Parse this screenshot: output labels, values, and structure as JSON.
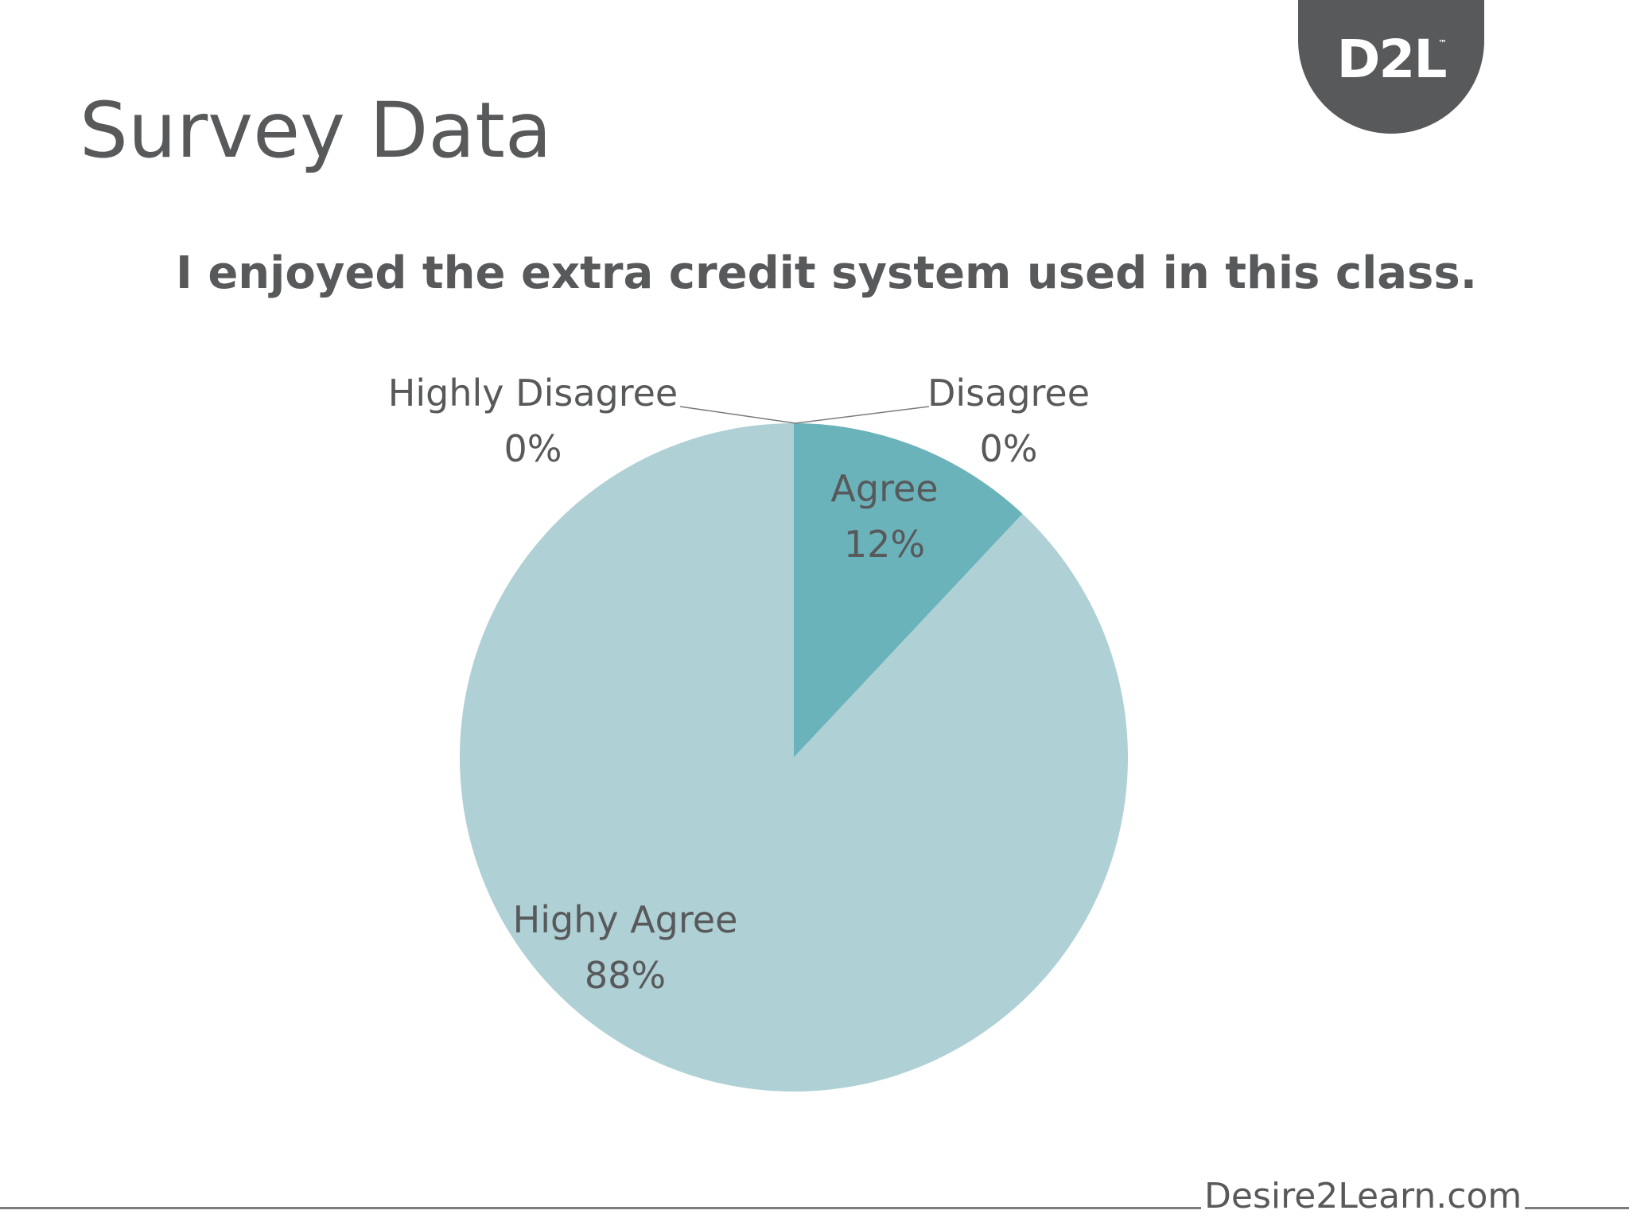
{
  "slide": {
    "title": "Survey Data",
    "logo_text": "D2L",
    "logo_trademark": "™",
    "footer_text": "Desire2Learn.com"
  },
  "chart_data": {
    "type": "pie",
    "title": "I enjoyed the extra credit system used in this class.",
    "slices": [
      {
        "label": "Highly Disagree",
        "value": 0,
        "value_label": "0%",
        "color": "#afd0d5"
      },
      {
        "label": "Disagree",
        "value": 0,
        "value_label": "0%",
        "color": "#afd0d5"
      },
      {
        "label": "Agree",
        "value": 12,
        "value_label": "12%",
        "color": "#6bb3bb"
      },
      {
        "label": "Highy Agree",
        "value": 88,
        "value_label": "88%",
        "color": "#afd0d5"
      }
    ],
    "slice_order": "clockwise-from-top",
    "legend": "none",
    "grid": false
  },
  "colors": {
    "text": "#58595b",
    "brand_gray": "#58595b",
    "leader_line": "#7a7b7d"
  }
}
